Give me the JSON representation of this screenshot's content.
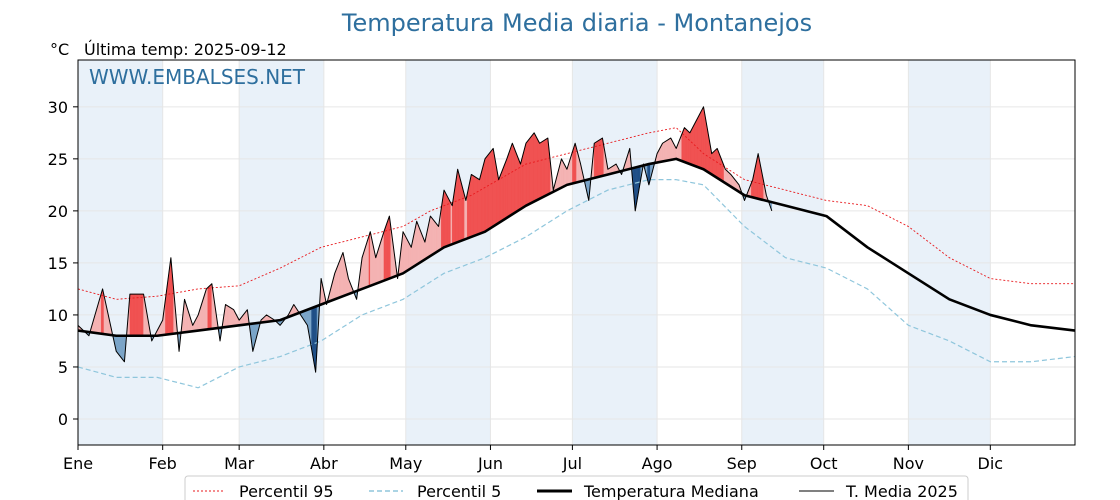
{
  "chart_data": {
    "type": "line",
    "title": "Temperatura Media diaria - Montanejos",
    "unit_label": "°C",
    "last_temp_label": "Última temp: 2025-09-12",
    "watermark": "WWW.EMBALSES.NET",
    "ylim": [
      -2.5,
      34.5
    ],
    "yticks": [
      0,
      5,
      10,
      15,
      20,
      25,
      30
    ],
    "xlim": [
      1,
      366
    ],
    "months": [
      "Ene",
      "Feb",
      "Mar",
      "Abr",
      "May",
      "Jun",
      "Jul",
      "Ago",
      "Sep",
      "Oct",
      "Nov",
      "Dic"
    ],
    "month_starts": [
      1,
      32,
      60,
      91,
      121,
      152,
      182,
      213,
      244,
      274,
      305,
      335
    ],
    "grid": true,
    "legend_position": "bottom",
    "colors": {
      "p95": "#e8191d",
      "p5": "#8fc6dc",
      "median": "#000000",
      "current": "#000000",
      "above": "#f4b2b2",
      "above_strong": "#f05050",
      "below": "#7aa4c8",
      "below_strong": "#1f4f86",
      "band": "#e9f1f9",
      "title": "#2e6f9e"
    },
    "series": [
      {
        "name": "Percentil 95",
        "key": "p95",
        "x": [
          1,
          15,
          30,
          45,
          60,
          75,
          90,
          105,
          120,
          130,
          145,
          155,
          165,
          180,
          195,
          210,
          220,
          230,
          245,
          260,
          275,
          290,
          305,
          320,
          335,
          350,
          366
        ],
        "y": [
          12.5,
          11.5,
          11.8,
          12.5,
          12.8,
          14.5,
          16.5,
          17.5,
          18.5,
          20.0,
          21.5,
          23.0,
          24.5,
          25.5,
          26.5,
          27.5,
          28.0,
          25.5,
          23.0,
          22.0,
          21.0,
          20.5,
          18.5,
          15.5,
          13.5,
          13.0,
          13.0
        ]
      },
      {
        "name": "Percentil 5",
        "key": "p5",
        "x": [
          1,
          15,
          30,
          45,
          60,
          75,
          90,
          105,
          120,
          135,
          150,
          165,
          180,
          195,
          210,
          220,
          230,
          245,
          260,
          275,
          290,
          305,
          320,
          335,
          350,
          366
        ],
        "y": [
          5.0,
          4.0,
          4.0,
          3.0,
          5.0,
          6.0,
          7.5,
          10.0,
          11.5,
          14.0,
          15.5,
          17.5,
          20.0,
          22.0,
          23.0,
          23.0,
          22.5,
          18.5,
          15.5,
          14.5,
          12.5,
          9.0,
          7.5,
          5.5,
          5.5,
          6.0
        ]
      },
      {
        "name": "Temperatura Mediana",
        "key": "median",
        "x": [
          1,
          15,
          30,
          45,
          60,
          75,
          90,
          105,
          120,
          135,
          150,
          165,
          180,
          195,
          210,
          220,
          230,
          245,
          260,
          275,
          290,
          305,
          320,
          335,
          350,
          366
        ],
        "y": [
          8.5,
          8.0,
          8.0,
          8.5,
          9.0,
          9.5,
          11.0,
          12.5,
          14.0,
          16.5,
          18.0,
          20.5,
          22.5,
          23.5,
          24.5,
          25.0,
          24.0,
          21.5,
          20.5,
          19.5,
          16.5,
          14.0,
          11.5,
          10.0,
          9.0,
          8.5
        ]
      },
      {
        "name": "T. Media 2025",
        "key": "current",
        "x": [
          1,
          5,
          10,
          15,
          18,
          20,
          25,
          28,
          32,
          35,
          38,
          40,
          43,
          45,
          48,
          50,
          53,
          55,
          58,
          60,
          63,
          65,
          68,
          70,
          73,
          75,
          78,
          80,
          85,
          88,
          90,
          92,
          95,
          98,
          100,
          103,
          105,
          108,
          110,
          113,
          115,
          118,
          120,
          123,
          125,
          128,
          130,
          133,
          135,
          138,
          140,
          143,
          145,
          148,
          150,
          153,
          155,
          158,
          160,
          163,
          165,
          168,
          170,
          173,
          175,
          178,
          180,
          183,
          185,
          188,
          190,
          193,
          195,
          198,
          200,
          203,
          205,
          208,
          210,
          213,
          215,
          218,
          220,
          223,
          225,
          228,
          230,
          233,
          235,
          238,
          240,
          243,
          245,
          248,
          250,
          253,
          255
        ],
        "y": [
          9.0,
          8.0,
          12.5,
          6.5,
          5.5,
          12.0,
          12.0,
          7.5,
          9.5,
          15.5,
          6.5,
          11.5,
          9.0,
          10.0,
          12.5,
          13.0,
          7.5,
          11.0,
          10.5,
          9.5,
          10.5,
          6.5,
          9.5,
          10.0,
          9.5,
          9.0,
          10.0,
          11.0,
          9.0,
          4.5,
          13.5,
          11.0,
          14.0,
          16.0,
          13.5,
          11.5,
          15.5,
          18.0,
          15.5,
          18.0,
          19.5,
          13.5,
          18.0,
          16.5,
          19.0,
          17.0,
          19.5,
          18.5,
          22.0,
          20.5,
          24.0,
          21.0,
          23.5,
          23.0,
          25.0,
          26.0,
          23.0,
          25.0,
          26.5,
          24.5,
          26.5,
          27.5,
          26.5,
          27.0,
          22.0,
          25.0,
          24.0,
          26.5,
          24.5,
          21.0,
          26.5,
          27.0,
          24.0,
          24.5,
          23.5,
          26.0,
          20.0,
          24.5,
          22.5,
          25.5,
          26.5,
          27.0,
          26.0,
          28.0,
          27.5,
          29.0,
          30.0,
          25.5,
          26.0,
          24.0,
          23.5,
          22.5,
          21.0,
          23.0,
          25.5,
          21.5,
          20.0
        ]
      }
    ],
    "legend_entries": [
      "Percentil 95",
      "Percentil 5",
      "Temperatura Mediana",
      "T. Media 2025"
    ]
  }
}
